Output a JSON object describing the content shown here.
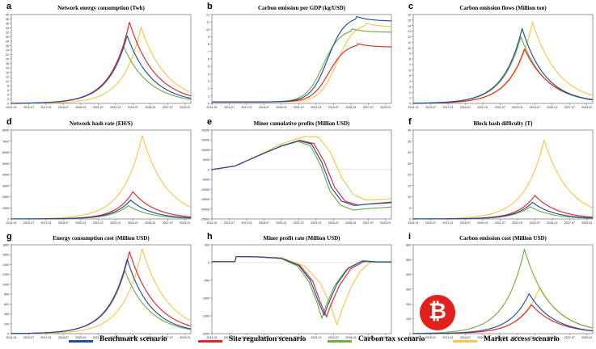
{
  "colors": {
    "benchmark": "#1f4e9c",
    "site": "#e3262b",
    "carbon": "#6fae46",
    "market": "#f8c54e"
  },
  "legend": [
    {
      "key": "benchmark",
      "label": "Benchmark scenario"
    },
    {
      "key": "site",
      "label": "Site regulation scenario"
    },
    {
      "key": "carbon",
      "label": "Carbon tax scenario"
    },
    {
      "key": "market",
      "label": "Market access scenario"
    }
  ],
  "chart_data": [
    {
      "letter": "a",
      "type": "line",
      "title": "Network energy consumption (Twh)",
      "ylim": [
        0,
        40
      ],
      "yticks": [
        "0",
        "2",
        "4",
        "6",
        "8",
        "10",
        "12",
        "14",
        "16",
        "18",
        "20",
        "22",
        "24",
        "26",
        "28",
        "30",
        "32",
        "34",
        "36",
        "38",
        "40"
      ],
      "xticks": [
        "2014-01",
        "2015-07",
        "2017-01",
        "2018-07",
        "2020-01",
        "2021-07",
        "2023-01",
        "2024-07",
        "2026-01",
        "2027-07",
        "2029-01"
      ],
      "series": [
        {
          "key": "benchmark",
          "peak_x": 2024.0,
          "peak": 30.5,
          "rise": 0.62,
          "fall": 0.47
        },
        {
          "key": "site",
          "peak_x": 2024.2,
          "peak": 36.5,
          "rise": 0.62,
          "fall": 0.45
        },
        {
          "key": "carbon",
          "peak_x": 2023.7,
          "peak": 25.5,
          "rise": 0.62,
          "fall": 0.46
        },
        {
          "key": "market",
          "peak_x": 2025.2,
          "peak": 34.2,
          "rise": 0.65,
          "fall": 0.45
        }
      ]
    },
    {
      "letter": "b",
      "type": "line",
      "title": "Carbon emission per GDP (kg/USD)",
      "ylim": [
        0,
        12
      ],
      "yticks": [
        "0",
        "1",
        "2",
        "3",
        "4",
        "5",
        "6",
        "7",
        "8",
        "9",
        "10",
        "11",
        "12"
      ],
      "xticks": [
        "2014-01",
        "2015-07",
        "2017-01",
        "2018-07",
        "2020-01",
        "2021-07",
        "2023-01",
        "2024-07",
        "2026-01",
        "2027-07",
        "2029-01"
      ],
      "series": [
        {
          "key": "benchmark",
          "start": 0.2,
          "peak": 11.8,
          "peak_x": 2026.4,
          "end": 11.1
        },
        {
          "key": "site",
          "start": 0.2,
          "peak": 8.1,
          "peak_x": 2026.5,
          "end": 7.6
        },
        {
          "key": "carbon",
          "start": 0.2,
          "peak": 10.1,
          "peak_x": 2026.0,
          "end": 9.6
        },
        {
          "key": "market",
          "start": 0.2,
          "peak": 10.9,
          "peak_x": 2027.2,
          "end": 10.3
        }
      ]
    },
    {
      "letter": "c",
      "type": "line",
      "title": "Carbon emission flows (Million ton)",
      "ylim": [
        0,
        16
      ],
      "yticks": [
        "0",
        "1",
        "2",
        "3",
        "4",
        "5",
        "6",
        "7",
        "8",
        "9",
        "10",
        "11",
        "12",
        "13",
        "14",
        "15",
        "16"
      ],
      "xticks": [
        "2014-01",
        "2015-07",
        "2017-01",
        "2018-07",
        "2020-01",
        "2021-07",
        "2023-01",
        "2024-07",
        "2026-01",
        "2027-07",
        "2029-01"
      ],
      "series": [
        {
          "key": "benchmark",
          "peak_x": 2023.4,
          "peak": 13.5,
          "rise": 0.62,
          "fall": 0.5
        },
        {
          "key": "site",
          "peak_x": 2023.6,
          "peak": 9.8,
          "rise": 0.62,
          "fall": 0.45
        },
        {
          "key": "carbon",
          "peak_x": 2023.3,
          "peak": 12.0,
          "rise": 0.62,
          "fall": 0.48
        },
        {
          "key": "market",
          "peak_x": 2024.3,
          "peak": 14.6,
          "rise": 0.62,
          "fall": 0.45
        }
      ]
    },
    {
      "letter": "d",
      "type": "line",
      "title": "Network hash rate (EH/S)",
      "ylim": [
        0,
        8000
      ],
      "yticks": [
        "0",
        "1000",
        "2000",
        "3000",
        "4000",
        "5000",
        "6000",
        "7000",
        "8000"
      ],
      "xticks": [
        "2014-01",
        "2015-07",
        "2017-01",
        "2018-07",
        "2020-01",
        "2021-07",
        "2023-01",
        "2024-07",
        "2026-01",
        "2027-07",
        "2029-01"
      ],
      "series": [
        {
          "key": "benchmark",
          "peak_x": 2024.3,
          "peak": 1700,
          "rise": 0.7,
          "fall": 0.55
        },
        {
          "key": "site",
          "peak_x": 2024.5,
          "peak": 2450,
          "rise": 0.7,
          "fall": 0.52
        },
        {
          "key": "carbon",
          "peak_x": 2024.1,
          "peak": 1200,
          "rise": 0.7,
          "fall": 0.55
        },
        {
          "key": "market",
          "peak_x": 2025.3,
          "peak": 7500,
          "rise": 0.6,
          "fall": 0.47
        }
      ]
    },
    {
      "letter": "e",
      "type": "line",
      "title": "Miner cumulative profits (Million USD)",
      "ylim": [
        -25000,
        20000
      ],
      "yticks": [
        "-25000",
        "-20000",
        "-15000",
        "-10000",
        "-5000",
        "0",
        "5000",
        "10000",
        "15000",
        "20000"
      ],
      "xticks": [
        "2014-01",
        "2015-07",
        "2017-01",
        "2018-07",
        "2020-01",
        "2021-07",
        "2023-01",
        "2024-07",
        "2026-01",
        "2027-07",
        "2029-01"
      ],
      "series": [
        {
          "key": "benchmark",
          "points": [
            [
              2014.0,
              0
            ],
            [
              2016.0,
              1800
            ],
            [
              2018.0,
              7000
            ],
            [
              2020.0,
              12000
            ],
            [
              2021.5,
              14600
            ],
            [
              2022.6,
              13000
            ],
            [
              2023.5,
              3500
            ],
            [
              2024.3,
              -9000
            ],
            [
              2025.2,
              -16000
            ],
            [
              2026.3,
              -18200
            ],
            [
              2027.5,
              -17500
            ],
            [
              2029.4,
              -16800
            ]
          ]
        },
        {
          "key": "site",
          "points": [
            [
              2014.0,
              0
            ],
            [
              2016.0,
              1800
            ],
            [
              2018.0,
              7000
            ],
            [
              2020.0,
              12000
            ],
            [
              2021.6,
              14800
            ],
            [
              2022.8,
              13200
            ],
            [
              2023.7,
              4000
            ],
            [
              2024.6,
              -9000
            ],
            [
              2025.5,
              -16000
            ],
            [
              2026.6,
              -18000
            ],
            [
              2027.8,
              -17300
            ],
            [
              2029.4,
              -16500
            ]
          ]
        },
        {
          "key": "carbon",
          "points": [
            [
              2014.0,
              0
            ],
            [
              2016.0,
              1800
            ],
            [
              2018.0,
              7000
            ],
            [
              2020.0,
              11800
            ],
            [
              2021.4,
              14200
            ],
            [
              2022.5,
              12200
            ],
            [
              2023.4,
              2000
            ],
            [
              2024.2,
              -11000
            ],
            [
              2025.1,
              -18000
            ],
            [
              2026.2,
              -20500
            ],
            [
              2027.4,
              -19800
            ],
            [
              2029.4,
              -19000
            ]
          ]
        },
        {
          "key": "market",
          "points": [
            [
              2014.0,
              0
            ],
            [
              2016.0,
              1800
            ],
            [
              2018.0,
              7200
            ],
            [
              2020.0,
              13000
            ],
            [
              2022.0,
              16800
            ],
            [
              2023.2,
              16500
            ],
            [
              2024.2,
              9000
            ],
            [
              2025.2,
              -4000
            ],
            [
              2026.2,
              -12500
            ],
            [
              2027.3,
              -15500
            ],
            [
              2029.4,
              -14800
            ]
          ]
        }
      ]
    },
    {
      "letter": "f",
      "type": "line",
      "title": "Block hash difficulty (T)",
      "ylim": [
        0,
        40
      ],
      "yticks": [
        "0",
        "5",
        "10",
        "15",
        "20",
        "25",
        "30",
        "35",
        "40"
      ],
      "xticks": [
        "2014-01",
        "2015-07",
        "2017-01",
        "2018-07",
        "2020-01",
        "2021-07",
        "2023-01",
        "2024-07",
        "2026-01",
        "2027-07",
        "2029-01"
      ],
      "series": [
        {
          "key": "benchmark",
          "peak_x": 2024.3,
          "peak": 7.5,
          "rise": 0.7,
          "fall": 0.55
        },
        {
          "key": "site",
          "peak_x": 2024.5,
          "peak": 10.6,
          "rise": 0.7,
          "fall": 0.52
        },
        {
          "key": "carbon",
          "peak_x": 2024.1,
          "peak": 5.5,
          "rise": 0.7,
          "fall": 0.55
        },
        {
          "key": "market",
          "peak_x": 2025.3,
          "peak": 35.5,
          "rise": 0.6,
          "fall": 0.47
        }
      ]
    },
    {
      "letter": "g",
      "type": "line",
      "title": "Energy consumption cost (Million USD)",
      "ylim": [
        0,
        1800
      ],
      "yticks": [
        "0",
        "200",
        "400",
        "600",
        "800",
        "1000",
        "1200",
        "1400",
        "1600",
        "1800"
      ],
      "xticks": [
        "2014-01",
        "2015-07",
        "2017-01",
        "2018-07",
        "2020-01",
        "2021-07",
        "2023-01",
        "2024-07",
        "2026-01",
        "2027-07",
        "2029-01"
      ],
      "series": [
        {
          "key": "benchmark",
          "peak_x": 2024.0,
          "peak": 1510,
          "rise": 0.62,
          "fall": 0.5
        },
        {
          "key": "site",
          "peak_x": 2024.2,
          "peak": 1660,
          "rise": 0.62,
          "fall": 0.45
        },
        {
          "key": "carbon",
          "peak_x": 2023.8,
          "peak": 1280,
          "rise": 0.62,
          "fall": 0.48
        },
        {
          "key": "market",
          "peak_x": 2025.3,
          "peak": 1720,
          "rise": 0.62,
          "fall": 0.45
        }
      ]
    },
    {
      "letter": "h",
      "type": "line",
      "title": "Miner profit rate (Million USD)",
      "ylim": [
        -2000,
        500
      ],
      "yticks": [
        "-2000",
        "-1500",
        "-1000",
        "-500",
        "0",
        "500"
      ],
      "xticks": [
        "2014-01",
        "2015-07",
        "2017-01",
        "2018-07",
        "2020-01",
        "2021-07",
        "2023-01",
        "2024-07",
        "2026-01",
        "2027-07",
        "2029-01"
      ],
      "series": [
        {
          "key": "benchmark",
          "points": [
            [
              2014.0,
              30
            ],
            [
              2016.0,
              30
            ],
            [
              2016.05,
              170
            ],
            [
              2018.0,
              160
            ],
            [
              2020.0,
              120
            ],
            [
              2021.5,
              -80
            ],
            [
              2022.5,
              -500
            ],
            [
              2023.2,
              -1100
            ],
            [
              2023.7,
              -1480
            ],
            [
              2024.0,
              -1200
            ],
            [
              2024.8,
              -600
            ],
            [
              2025.8,
              -150
            ],
            [
              2027.0,
              50
            ],
            [
              2028.3,
              20
            ],
            [
              2029.4,
              20
            ]
          ]
        },
        {
          "key": "site",
          "points": [
            [
              2014.0,
              30
            ],
            [
              2016.0,
              30
            ],
            [
              2016.05,
              170
            ],
            [
              2018.0,
              160
            ],
            [
              2020.0,
              120
            ],
            [
              2021.6,
              -80
            ],
            [
              2022.7,
              -520
            ],
            [
              2023.4,
              -1150
            ],
            [
              2023.9,
              -1530
            ],
            [
              2024.2,
              -1250
            ],
            [
              2025.0,
              -650
            ],
            [
              2026.0,
              -170
            ],
            [
              2027.2,
              40
            ],
            [
              2028.3,
              20
            ],
            [
              2029.4,
              20
            ]
          ]
        },
        {
          "key": "carbon",
          "points": [
            [
              2014.0,
              30
            ],
            [
              2016.0,
              30
            ],
            [
              2016.05,
              170
            ],
            [
              2018.0,
              155
            ],
            [
              2020.0,
              110
            ],
            [
              2021.4,
              -100
            ],
            [
              2022.4,
              -550
            ],
            [
              2023.1,
              -1150
            ],
            [
              2023.5,
              -1570
            ],
            [
              2023.8,
              -1250
            ],
            [
              2024.6,
              -650
            ],
            [
              2025.6,
              -200
            ],
            [
              2026.9,
              30
            ],
            [
              2028.3,
              10
            ],
            [
              2029.4,
              10
            ]
          ]
        },
        {
          "key": "market",
          "points": [
            [
              2014.0,
              30
            ],
            [
              2016.0,
              30
            ],
            [
              2016.05,
              170
            ],
            [
              2018.0,
              165
            ],
            [
              2020.0,
              140
            ],
            [
              2022.0,
              -100
            ],
            [
              2023.3,
              -550
            ],
            [
              2024.2,
              -1150
            ],
            [
              2024.8,
              -1750
            ],
            [
              2025.2,
              -1350
            ],
            [
              2026.0,
              -700
            ],
            [
              2026.8,
              -250
            ],
            [
              2027.7,
              20
            ],
            [
              2028.6,
              20
            ],
            [
              2029.4,
              15
            ]
          ]
        }
      ]
    },
    {
      "letter": "i",
      "type": "line",
      "title": "Carbon emission cost (Million USD)",
      "ylim": [
        0,
        600
      ],
      "yticks": [
        "0",
        "100",
        "200",
        "300",
        "400",
        "500",
        "600"
      ],
      "xticks": [
        "2014-01",
        "2015-07",
        "2017-01",
        "2018-07",
        "2020-01",
        "2021-07",
        "2023-01",
        "2024-07",
        "2026-01",
        "2027-07",
        "2029-01"
      ],
      "series": [
        {
          "key": "benchmark",
          "peak_x": 2024.0,
          "peak": 270,
          "rise": 0.62,
          "fall": 0.48
        },
        {
          "key": "site",
          "peak_x": 2024.2,
          "peak": 195,
          "rise": 0.62,
          "fall": 0.45
        },
        {
          "key": "carbon",
          "peak_x": 2023.6,
          "peak": 570,
          "rise": 0.6,
          "fall": 0.46
        },
        {
          "key": "market",
          "peak_x": 2024.9,
          "peak": 310,
          "rise": 0.62,
          "fall": 0.45
        }
      ]
    }
  ],
  "logo_symbol": "₿"
}
